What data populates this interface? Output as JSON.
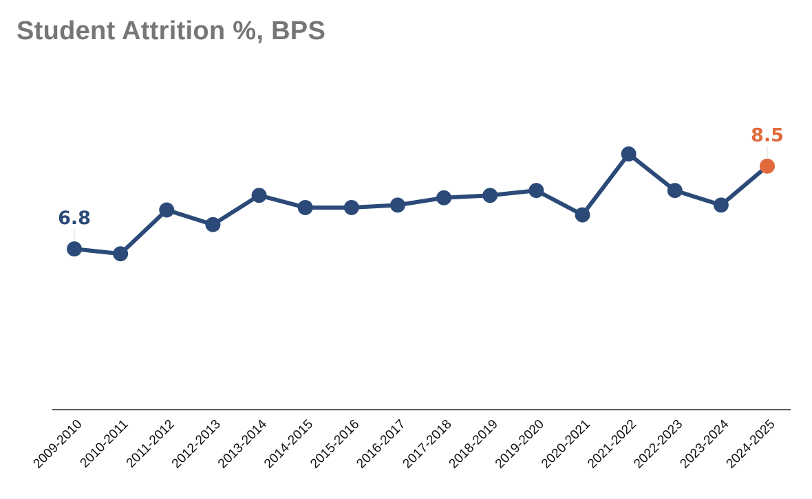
{
  "title": "Student Attrition %, BPS",
  "chart_data": {
    "type": "line",
    "title": "Student Attrition %, BPS",
    "categories": [
      "2009-2010",
      "2010-2011",
      "2011-2012",
      "2012-2013",
      "2013-2014",
      "2014-2015",
      "2015-2016",
      "2016-2017",
      "2017-2018",
      "2018-2019",
      "2019-2020",
      "2020-2021",
      "2021-2022",
      "2022-2023",
      "2023-2024",
      "2024-2025"
    ],
    "values": [
      6.8,
      6.7,
      7.6,
      7.3,
      7.9,
      7.65,
      7.65,
      7.7,
      7.85,
      7.9,
      8.0,
      7.5,
      8.75,
      8.0,
      7.7,
      8.5
    ],
    "data_labels": [
      {
        "index": 0,
        "text": "6.8"
      },
      {
        "index": 15,
        "text": "8.5"
      }
    ],
    "xlabel": "",
    "ylabel": "",
    "ylim": [
      3.5,
      10.5
    ],
    "grid": false,
    "colors": {
      "line": "#2b4a78",
      "highlight": "#e06a3b",
      "axis": "#222222"
    }
  }
}
